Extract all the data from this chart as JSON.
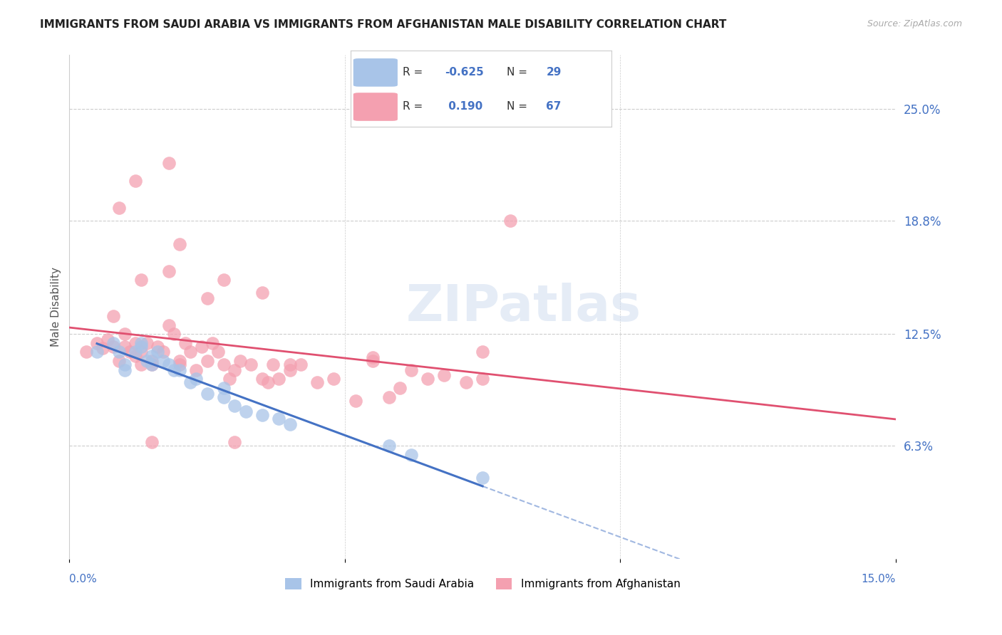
{
  "title": "IMMIGRANTS FROM SAUDI ARABIA VS IMMIGRANTS FROM AFGHANISTAN MALE DISABILITY CORRELATION CHART",
  "source": "Source: ZipAtlas.com",
  "ylabel": "Male Disability",
  "ytick_labels": [
    "25.0%",
    "18.8%",
    "12.5%",
    "6.3%"
  ],
  "ytick_values": [
    0.25,
    0.188,
    0.125,
    0.063
  ],
  "xlim": [
    0.0,
    0.15
  ],
  "ylim": [
    0.0,
    0.28
  ],
  "color_saudi": "#a8c4e8",
  "color_afghanistan": "#f4a0b0",
  "line_color_saudi": "#4472c4",
  "line_color_afghanistan": "#e05070",
  "background_color": "#ffffff",
  "watermark": "ZIPatlas",
  "saudi_x": [
    0.005,
    0.008,
    0.009,
    0.01,
    0.01,
    0.012,
    0.013,
    0.013,
    0.014,
    0.015,
    0.015,
    0.016,
    0.017,
    0.018,
    0.019,
    0.02,
    0.022,
    0.023,
    0.025,
    0.028,
    0.028,
    0.03,
    0.032,
    0.035,
    0.038,
    0.04,
    0.058,
    0.062,
    0.075
  ],
  "saudi_y": [
    0.115,
    0.12,
    0.115,
    0.108,
    0.105,
    0.115,
    0.12,
    0.118,
    0.11,
    0.113,
    0.108,
    0.115,
    0.11,
    0.108,
    0.105,
    0.105,
    0.098,
    0.1,
    0.092,
    0.09,
    0.095,
    0.085,
    0.082,
    0.08,
    0.078,
    0.075,
    0.063,
    0.058,
    0.045
  ],
  "afghan_x": [
    0.003,
    0.005,
    0.006,
    0.007,
    0.008,
    0.009,
    0.01,
    0.01,
    0.011,
    0.012,
    0.012,
    0.013,
    0.013,
    0.014,
    0.015,
    0.015,
    0.016,
    0.017,
    0.018,
    0.019,
    0.02,
    0.02,
    0.021,
    0.022,
    0.023,
    0.024,
    0.025,
    0.026,
    0.027,
    0.028,
    0.029,
    0.03,
    0.031,
    0.033,
    0.035,
    0.036,
    0.037,
    0.038,
    0.04,
    0.042,
    0.045,
    0.048,
    0.052,
    0.055,
    0.058,
    0.06,
    0.065,
    0.068,
    0.072,
    0.075,
    0.018,
    0.02,
    0.012,
    0.008,
    0.009,
    0.025,
    0.028,
    0.03,
    0.015,
    0.013,
    0.04,
    0.055,
    0.08,
    0.075,
    0.018,
    0.035,
    0.062
  ],
  "afghan_y": [
    0.115,
    0.12,
    0.117,
    0.122,
    0.118,
    0.11,
    0.125,
    0.118,
    0.115,
    0.12,
    0.113,
    0.115,
    0.108,
    0.12,
    0.11,
    0.108,
    0.118,
    0.115,
    0.13,
    0.125,
    0.11,
    0.108,
    0.12,
    0.115,
    0.105,
    0.118,
    0.11,
    0.12,
    0.115,
    0.108,
    0.1,
    0.105,
    0.11,
    0.108,
    0.1,
    0.098,
    0.108,
    0.1,
    0.105,
    0.108,
    0.098,
    0.1,
    0.088,
    0.112,
    0.09,
    0.095,
    0.1,
    0.102,
    0.098,
    0.1,
    0.16,
    0.175,
    0.21,
    0.135,
    0.195,
    0.145,
    0.155,
    0.065,
    0.065,
    0.155,
    0.108,
    0.11,
    0.188,
    0.115,
    0.22,
    0.148,
    0.105
  ]
}
